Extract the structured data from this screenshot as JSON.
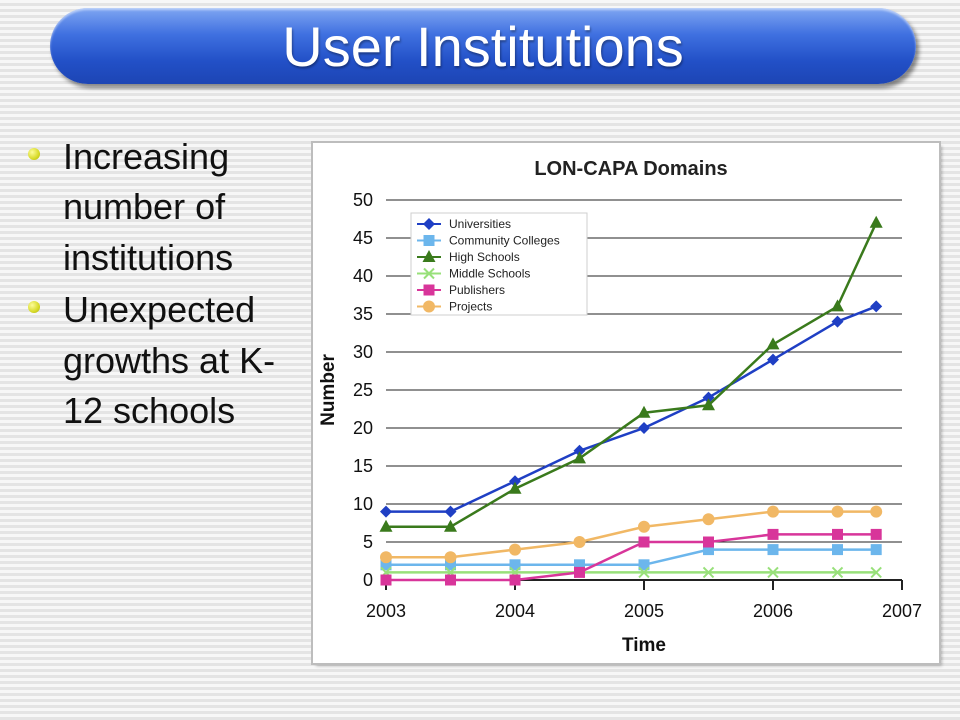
{
  "slide": {
    "title": "User Institutions"
  },
  "bullets": [
    {
      "text": "Increasing number of institutions"
    },
    {
      "text": "Unexpected growths at K-12 schools"
    }
  ],
  "chart_data": {
    "type": "line",
    "title": "LON-CAPA Domains",
    "xlabel": "Time",
    "ylabel": "Number",
    "x": [
      2003.0,
      2003.5,
      2004.0,
      2004.5,
      2005.0,
      2005.5,
      2006.0,
      2006.5,
      2006.8
    ],
    "xlim": [
      2003,
      2007
    ],
    "ylim": [
      0,
      50
    ],
    "xticks": [
      "2003",
      "2004",
      "2005",
      "2006",
      "2007"
    ],
    "yticks": [
      "0",
      "5",
      "10",
      "15",
      "20",
      "25",
      "30",
      "35",
      "40",
      "45",
      "50"
    ],
    "grid": true,
    "legend_position": "top-left",
    "series": [
      {
        "name": "Universities",
        "color": "#1f3fc4",
        "marker": "diamond",
        "values": [
          9,
          9,
          13,
          17,
          20,
          24,
          29,
          34,
          36
        ]
      },
      {
        "name": "Community Colleges",
        "color": "#6cb6ec",
        "marker": "square",
        "values": [
          2,
          2,
          2,
          2,
          2,
          4,
          4,
          4,
          4
        ]
      },
      {
        "name": "High Schools",
        "color": "#3a7a1c",
        "marker": "triangle",
        "values": [
          7,
          7,
          12,
          16,
          22,
          23,
          31,
          36,
          47
        ]
      },
      {
        "name": "Middle Schools",
        "color": "#98e07a",
        "marker": "x",
        "values": [
          1,
          1,
          1,
          1,
          1,
          1,
          1,
          1,
          1
        ]
      },
      {
        "name": "Publishers",
        "color": "#d8359a",
        "marker": "square",
        "values": [
          0,
          0,
          0,
          1,
          5,
          5,
          6,
          6,
          6
        ]
      },
      {
        "name": "Projects",
        "color": "#f1b865",
        "marker": "circle",
        "values": [
          3,
          3,
          4,
          5,
          7,
          8,
          9,
          9,
          9
        ]
      }
    ]
  }
}
